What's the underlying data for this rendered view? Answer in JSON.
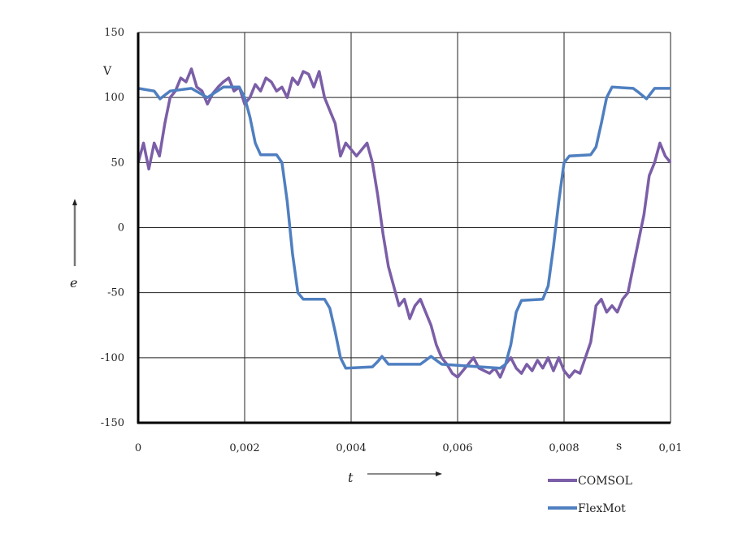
{
  "chart_data": {
    "type": "line",
    "title": "",
    "xlabel": "t",
    "ylabel": "e",
    "x_unit": "s",
    "y_unit": "V",
    "xlim": [
      0,
      0.01
    ],
    "ylim": [
      -150,
      150
    ],
    "x_ticks": [
      0,
      0.002,
      0.004,
      0.006,
      0.008,
      0.01
    ],
    "x_tick_labels": [
      "0",
      "0,002",
      "0,004",
      "0,006",
      "0,008",
      "0,01"
    ],
    "y_ticks": [
      150,
      100,
      50,
      0,
      -50,
      -100,
      -150
    ],
    "y_tick_labels": [
      "150",
      "100",
      "50",
      "0",
      "-50",
      "-100",
      "-150"
    ],
    "grid": true,
    "legend_position": "bottom-right",
    "series": [
      {
        "name": "COMSOL",
        "color": "#7b5ea7",
        "x": [
          0,
          0.0001,
          0.0002,
          0.0003,
          0.0004,
          0.0005,
          0.0006,
          0.0007,
          0.0008,
          0.0009,
          0.001,
          0.0011,
          0.0012,
          0.0013,
          0.0014,
          0.0015,
          0.0016,
          0.0017,
          0.0018,
          0.0019,
          0.002,
          0.0021,
          0.0022,
          0.0023,
          0.0024,
          0.0025,
          0.0026,
          0.0027,
          0.0028,
          0.0029,
          0.003,
          0.0031,
          0.0032,
          0.0033,
          0.0034,
          0.0035,
          0.0036,
          0.0037,
          0.0038,
          0.0039,
          0.004,
          0.0041,
          0.0042,
          0.0043,
          0.0044,
          0.0045,
          0.0046,
          0.0047,
          0.0048,
          0.0049,
          0.005,
          0.0051,
          0.0052,
          0.0053,
          0.0054,
          0.0055,
          0.0056,
          0.0057,
          0.0058,
          0.0059,
          0.006,
          0.0061,
          0.0062,
          0.0063,
          0.0064,
          0.0065,
          0.0066,
          0.0067,
          0.0068,
          0.0069,
          0.007,
          0.0071,
          0.0072,
          0.0073,
          0.0074,
          0.0075,
          0.0076,
          0.0077,
          0.0078,
          0.0079,
          0.008,
          0.0081,
          0.0082,
          0.0083,
          0.0084,
          0.0085,
          0.0086,
          0.0087,
          0.0088,
          0.0089,
          0.009,
          0.0091,
          0.0092,
          0.0093,
          0.0094,
          0.0095,
          0.0096,
          0.0097,
          0.0098,
          0.0099,
          0.01
        ],
        "y": [
          50,
          65,
          45,
          65,
          55,
          80,
          100,
          105,
          115,
          112,
          122,
          108,
          105,
          95,
          103,
          108,
          112,
          115,
          105,
          108,
          95,
          100,
          110,
          105,
          115,
          112,
          105,
          108,
          100,
          115,
          110,
          120,
          118,
          108,
          120,
          100,
          90,
          80,
          55,
          65,
          60,
          55,
          60,
          65,
          50,
          25,
          -5,
          -30,
          -45,
          -60,
          -55,
          -70,
          -60,
          -55,
          -65,
          -75,
          -90,
          -100,
          -105,
          -112,
          -115,
          -110,
          -105,
          -100,
          -108,
          -110,
          -112,
          -108,
          -115,
          -105,
          -100,
          -108,
          -112,
          -105,
          -110,
          -102,
          -108,
          -100,
          -110,
          -100,
          -110,
          -115,
          -110,
          -112,
          -100,
          -88,
          -60,
          -55,
          -65,
          -60,
          -65,
          -55,
          -50,
          -30,
          -10,
          10,
          40,
          50,
          65,
          55,
          50
        ]
      },
      {
        "name": "FlexMot",
        "color": "#4f7fc0",
        "x": [
          0,
          0.0003,
          0.00041,
          0.0006,
          0.001,
          0.0013,
          0.0016,
          0.0019,
          0.002,
          0.0021,
          0.0022,
          0.0023,
          0.0026,
          0.0027,
          0.0028,
          0.0029,
          0.003,
          0.0031,
          0.0035,
          0.0036,
          0.0037,
          0.0038,
          0.0039,
          0.0044,
          0.0045,
          0.00458,
          0.0047,
          0.0053,
          0.0055,
          0.0057,
          0.0068,
          0.0069,
          0.007,
          0.0071,
          0.0072,
          0.0076,
          0.0077,
          0.0078,
          0.0079,
          0.008,
          0.0081,
          0.0085,
          0.0086,
          0.0087,
          0.0088,
          0.0089,
          0.0093,
          0.0094,
          0.00955,
          0.0097,
          0.01
        ],
        "y": [
          107,
          105,
          99,
          105,
          107,
          100,
          108,
          108,
          100,
          85,
          65,
          56,
          56,
          50,
          20,
          -20,
          -50,
          -55,
          -55,
          -62,
          -80,
          -100,
          -108,
          -107,
          -103,
          -99,
          -105,
          -105,
          -99,
          -105,
          -108,
          -105,
          -90,
          -65,
          -56,
          -55,
          -45,
          -15,
          20,
          50,
          55,
          56,
          62,
          80,
          100,
          108,
          107,
          104,
          99,
          107,
          107
        ]
      }
    ]
  }
}
